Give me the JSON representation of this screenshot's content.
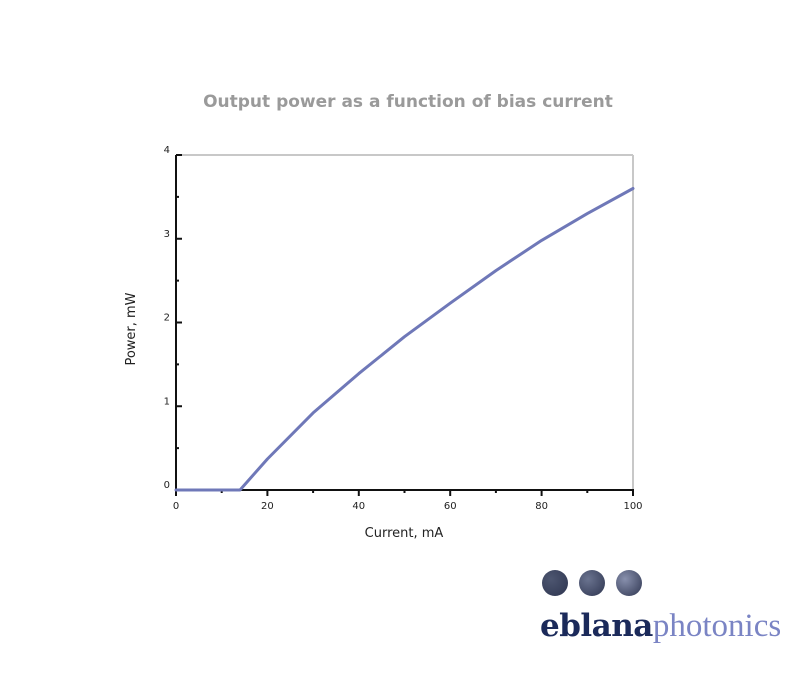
{
  "chart_data": {
    "type": "line",
    "title": "Output power as a function of bias current",
    "xlabel": "Current, mA",
    "ylabel": "Power, mW",
    "xlim": [
      0,
      100
    ],
    "ylim": [
      0,
      4
    ],
    "xticks": [
      0,
      20,
      40,
      60,
      80,
      100
    ],
    "yticks": [
      0,
      1,
      2,
      3,
      4
    ],
    "grid": false,
    "series": [
      {
        "color": "#6f78b8",
        "x": [
          0,
          14,
          20,
          30,
          40,
          50,
          60,
          70,
          80,
          90,
          100
        ],
        "y": [
          0.0,
          0.0,
          0.37,
          0.92,
          1.39,
          1.83,
          2.23,
          2.62,
          2.98,
          3.3,
          3.6
        ]
      }
    ]
  },
  "logo": {
    "bold_text": "eblana",
    "light_text": "photonics",
    "dot_colors": [
      "#4d5670",
      "#6a738f",
      "#8890ad"
    ]
  }
}
